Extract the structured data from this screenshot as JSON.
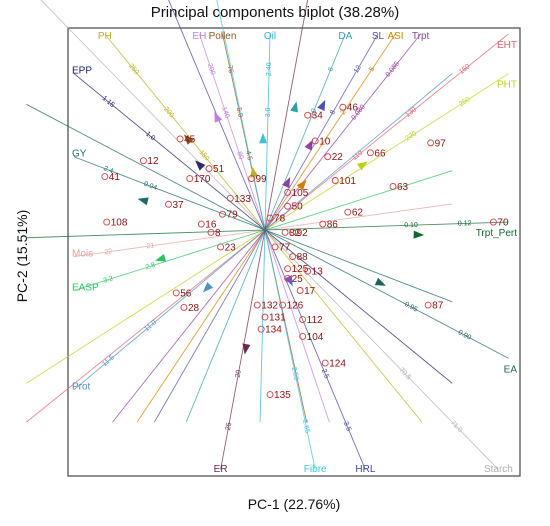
{
  "chart_data": {
    "type": "scatter",
    "title": "Principal components biplot (38.28%)",
    "xlabel": "PC-1  (22.76%)",
    "ylabel": "PC-2  (15.51%)",
    "xlim": [
      -1,
      1
    ],
    "ylim": [
      -1,
      1
    ],
    "grid": false,
    "variables": [
      {
        "name": "PH",
        "color": "#b8b020",
        "x": -0.83,
        "y": 0.99,
        "ticks": [
          "250",
          "200",
          "150"
        ]
      },
      {
        "name": "EH",
        "color": "#c080e0",
        "x": -0.34,
        "y": 0.99,
        "ticks": [
          "200",
          "140",
          "80"
        ]
      },
      {
        "name": "Pollen",
        "color": "#8a5a2a",
        "x": -0.22,
        "y": 0.99,
        "ticks": [
          "76",
          "5.0",
          "4.5"
        ]
      },
      {
        "name": "Oil",
        "color": "#30b0d8",
        "x": 0.02,
        "y": 0.99,
        "ticks": [
          "2.40",
          "3.0"
        ]
      },
      {
        "name": "DA",
        "color": "#30a0a8",
        "x": 0.32,
        "y": 0.99,
        "ticks": [
          "6",
          "10"
        ]
      },
      {
        "name": "SL",
        "color": "#5050b0",
        "x": 0.45,
        "y": 0.99,
        "ticks": [
          "12",
          "8"
        ]
      },
      {
        "name": "ASI",
        "color": "#d08000",
        "x": 0.52,
        "y": 0.99,
        "ticks": [
          "5",
          "2"
        ]
      },
      {
        "name": "Trpt",
        "color": "#9040a0",
        "x": 0.62,
        "y": 0.99,
        "ticks": [
          "0.085",
          "0.080"
        ]
      },
      {
        "name": "EHT",
        "color": "#e06070",
        "x": 0.97,
        "y": 0.99,
        "ticks": [
          "150",
          "130",
          "110"
        ]
      },
      {
        "name": "PHT",
        "color": "#c0d020",
        "x": 0.97,
        "y": 0.79,
        "ticks": [
          "250",
          "220"
        ]
      },
      {
        "name": "EPP",
        "color": "#1a1a6a",
        "x": -0.99,
        "y": 0.79,
        "ticks": [
          "1.15",
          "1.0"
        ]
      },
      {
        "name": "GY",
        "color": "#206a6a",
        "x": -0.99,
        "y": 0.37,
        "ticks": [
          "2.4",
          "0.04"
        ]
      },
      {
        "name": "Mois",
        "color": "#e0a0a0",
        "x": -0.99,
        "y": -0.11,
        "ticks": [
          "22",
          "21"
        ]
      },
      {
        "name": "EASP",
        "color": "#30c060",
        "x": -0.99,
        "y": -0.25,
        "ticks": [
          "3.2",
          "2.8"
        ]
      },
      {
        "name": "Prot",
        "color": "#5090c0",
        "x": -0.99,
        "y": -0.66,
        "ticks": [
          "11.5",
          "11.0"
        ]
      },
      {
        "name": "ER",
        "color": "#6a2a4a",
        "x": -0.23,
        "y": -0.99,
        "ticks": [
          "25",
          "20"
        ]
      },
      {
        "name": "Fibre",
        "color": "#40c0e0",
        "x": 0.2,
        "y": -0.99,
        "ticks": [
          "2.65",
          "2.55"
        ]
      },
      {
        "name": "HRL",
        "color": "#4040a0",
        "x": 0.4,
        "y": -0.99,
        "ticks": [
          "3.5",
          "2.5"
        ]
      },
      {
        "name": "Starch",
        "color": "#b0b0b0",
        "x": 0.93,
        "y": -0.99,
        "ticks": [
          "71.0",
          "70.5"
        ]
      },
      {
        "name": "EA",
        "color": "#206060",
        "x": 0.97,
        "y": -0.53,
        "ticks": [
          "0.90",
          "0.95"
        ]
      },
      {
        "name": "Trpt_Pert",
        "color": "#106a30",
        "x": 0.97,
        "y": 0.04,
        "ticks": [
          "0.12",
          "0.10"
        ]
      }
    ],
    "observations": [
      {
        "label": "46",
        "x": 0.31,
        "y": 0.62
      },
      {
        "label": "34",
        "x": 0.17,
        "y": 0.58
      },
      {
        "label": "45",
        "x": -0.44,
        "y": 0.46
      },
      {
        "label": "10",
        "x": 0.2,
        "y": 0.45
      },
      {
        "label": "97",
        "x": 0.66,
        "y": 0.44
      },
      {
        "label": "22",
        "x": 0.25,
        "y": 0.37
      },
      {
        "label": "66",
        "x": 0.42,
        "y": 0.39
      },
      {
        "label": "12",
        "x": -0.63,
        "y": 0.35
      },
      {
        "label": "51",
        "x": -0.29,
        "y": 0.31
      },
      {
        "label": "99",
        "x": -0.07,
        "y": 0.26
      },
      {
        "label": "41",
        "x": -0.83,
        "y": 0.27
      },
      {
        "label": "170",
        "x": -0.39,
        "y": 0.26
      },
      {
        "label": "101",
        "x": 0.28,
        "y": 0.25
      },
      {
        "label": "63",
        "x": 0.51,
        "y": 0.22
      },
      {
        "label": "105",
        "x": 0.09,
        "y": 0.19
      },
      {
        "label": "133",
        "x": -0.18,
        "y": 0.16
      },
      {
        "label": "37",
        "x": -0.5,
        "y": 0.13
      },
      {
        "label": "50",
        "x": 0.09,
        "y": 0.12
      },
      {
        "label": "62",
        "x": 0.33,
        "y": 0.09
      },
      {
        "label": "79",
        "x": -0.22,
        "y": 0.08
      },
      {
        "label": "78",
        "x": 0.02,
        "y": 0.06
      },
      {
        "label": "70",
        "x": 0.91,
        "y": 0.04
      },
      {
        "label": "108",
        "x": -0.82,
        "y": 0.04
      },
      {
        "label": "16",
        "x": -0.33,
        "y": 0.03
      },
      {
        "label": "86",
        "x": 0.23,
        "y": 0.03
      },
      {
        "label": "8",
        "x": -0.28,
        "y": -0.01
      },
      {
        "label": "82",
        "x": 0.08,
        "y": -0.01
      },
      {
        "label": "92",
        "x": 0.11,
        "y": -0.01
      },
      {
        "label": "23",
        "x": -0.23,
        "y": -0.07
      },
      {
        "label": "77",
        "x": 0.04,
        "y": -0.07
      },
      {
        "label": "88",
        "x": 0.11,
        "y": -0.11
      },
      {
        "label": "125",
        "x": 0.09,
        "y": -0.16
      },
      {
        "label": "13",
        "x": 0.17,
        "y": -0.17
      },
      {
        "label": "25",
        "x": 0.09,
        "y": -0.2
      },
      {
        "label": "17",
        "x": 0.14,
        "y": -0.25
      },
      {
        "label": "56",
        "x": -0.46,
        "y": -0.26
      },
      {
        "label": "87",
        "x": 0.65,
        "y": -0.31
      },
      {
        "label": "28",
        "x": -0.42,
        "y": -0.32
      },
      {
        "label": "132",
        "x": -0.04,
        "y": -0.31
      },
      {
        "label": "126",
        "x": 0.07,
        "y": -0.31
      },
      {
        "label": "131",
        "x": 0.0,
        "y": -0.36
      },
      {
        "label": "112",
        "x": 0.15,
        "y": -0.37
      },
      {
        "label": "134",
        "x": -0.02,
        "y": -0.41
      },
      {
        "label": "104",
        "x": 0.15,
        "y": -0.44
      },
      {
        "label": "124",
        "x": 0.24,
        "y": -0.55
      },
      {
        "label": "135",
        "x": 0.02,
        "y": -0.68
      }
    ],
    "arrow_heads": [
      {
        "color": "#c080e0",
        "x": -0.25,
        "y": 0.57
      },
      {
        "color": "#40c0e0",
        "x": -0.01,
        "y": 0.46
      },
      {
        "color": "#30a0a8",
        "x": 0.12,
        "y": 0.62
      },
      {
        "color": "#5050b0",
        "x": 0.23,
        "y": 0.63
      },
      {
        "color": "#9040a0",
        "x": 0.18,
        "y": 0.43
      },
      {
        "color": "#8a5a2a",
        "x": -0.4,
        "y": 0.46
      },
      {
        "color": "#2a2a6a",
        "x": -0.34,
        "y": 0.33
      },
      {
        "color": "#b8b020",
        "x": -0.06,
        "y": 0.29
      },
      {
        "color": "#c0d020",
        "x": 0.39,
        "y": 0.33
      },
      {
        "color": "#d08000",
        "x": 0.15,
        "y": 0.23
      },
      {
        "color": "#9040a0",
        "x": 0.09,
        "y": 0.24
      },
      {
        "color": "#206a6a",
        "x": -0.63,
        "y": 0.15
      },
      {
        "color": "#106a30",
        "x": 0.61,
        "y": -0.02
      },
      {
        "color": "#30c060",
        "x": -0.54,
        "y": -0.12
      },
      {
        "color": "#206060",
        "x": 0.46,
        "y": -0.22
      },
      {
        "color": "#5090c0",
        "x": -0.3,
        "y": -0.24
      },
      {
        "color": "#6060e0",
        "x": 0.1,
        "y": -0.21
      },
      {
        "color": "#6a2a4a",
        "x": -0.1,
        "y": -0.49
      }
    ]
  }
}
